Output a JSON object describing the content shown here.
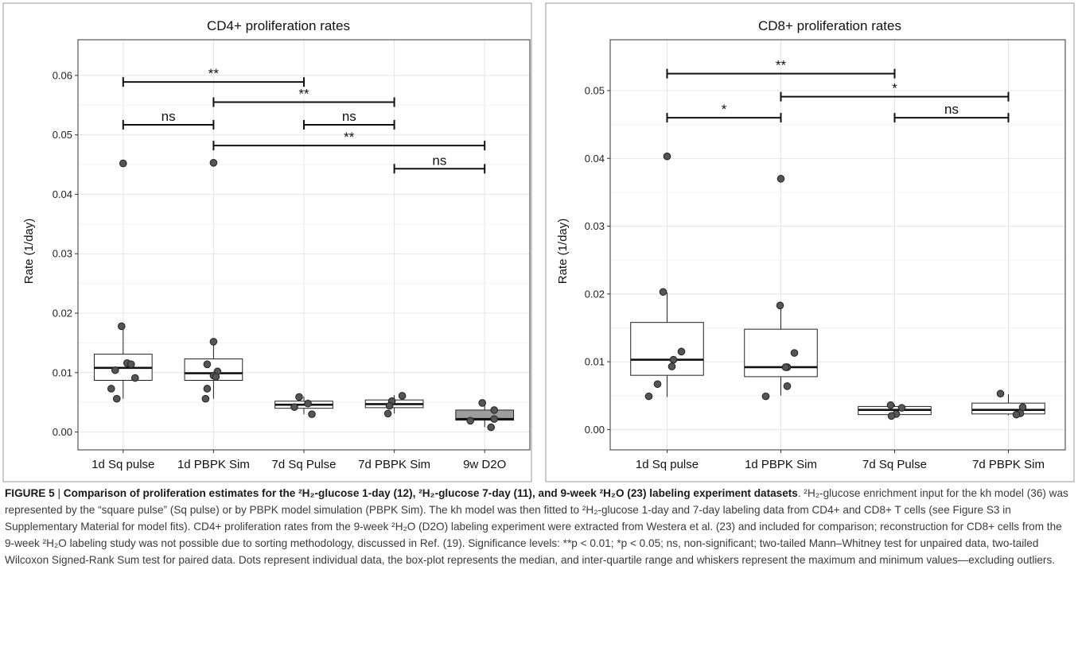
{
  "chart_data": [
    {
      "type": "box",
      "title": "CD4+ proliferation rates",
      "ylabel": "Rate (1/day)",
      "xlabel": "",
      "ylim": [
        -0.003,
        0.066
      ],
      "yticks": [
        0.0,
        0.01,
        0.02,
        0.03,
        0.04,
        0.05,
        0.06
      ],
      "ytick_labels": [
        "0.00",
        "0.01",
        "0.02",
        "0.03",
        "0.04",
        "0.05",
        "0.06"
      ],
      "categories": [
        "1d Sq pulse",
        "1d PBPK Sim",
        "7d Sq Pulse",
        "7d PBPK Sim",
        "9w D2O"
      ],
      "grid": true,
      "boxes": [
        {
          "q1": 0.0087,
          "median": 0.0108,
          "q3": 0.0131,
          "whisker_low": 0.0056,
          "whisker_high": 0.0178,
          "fill": "#ffffff",
          "points": [
            0.0178,
            0.0116,
            0.0114,
            0.0104,
            0.0091,
            0.0073,
            0.0056,
            0.0452
          ]
        },
        {
          "q1": 0.0087,
          "median": 0.0099,
          "q3": 0.0123,
          "whisker_low": 0.0056,
          "whisker_high": 0.0152,
          "fill": "#ffffff",
          "points": [
            0.0152,
            0.0114,
            0.0102,
            0.0095,
            0.0093,
            0.0073,
            0.0056,
            0.0453
          ]
        },
        {
          "q1": 0.004,
          "median": 0.0046,
          "q3": 0.0052,
          "whisker_low": 0.003,
          "whisker_high": 0.006,
          "fill": "#ffffff",
          "points": [
            0.0059,
            0.0048,
            0.0042,
            0.003
          ]
        },
        {
          "q1": 0.0041,
          "median": 0.0047,
          "q3": 0.0054,
          "whisker_low": 0.0031,
          "whisker_high": 0.0062,
          "fill": "#ffffff",
          "points": [
            0.0061,
            0.0052,
            0.0044,
            0.0031
          ]
        },
        {
          "q1": 0.002,
          "median": 0.0022,
          "q3": 0.0037,
          "whisker_low": 0.0008,
          "whisker_high": 0.0049,
          "fill": "#9e9e9e",
          "points": [
            0.0049,
            0.0037,
            0.0022,
            0.0019,
            0.0008
          ]
        }
      ],
      "significance": [
        {
          "from": 0,
          "to": 2,
          "y": 0.0589,
          "label": "**"
        },
        {
          "from": 1,
          "to": 3,
          "y": 0.0555,
          "label": "**"
        },
        {
          "from": 0,
          "to": 1,
          "y": 0.0517,
          "label": "ns"
        },
        {
          "from": 2,
          "to": 3,
          "y": 0.0517,
          "label": "ns"
        },
        {
          "from": 1,
          "to": 4,
          "y": 0.0482,
          "label": "**"
        },
        {
          "from": 3,
          "to": 4,
          "y": 0.0443,
          "label": "ns"
        }
      ]
    },
    {
      "type": "box",
      "title": "CD8+ proliferation rates",
      "ylabel": "Rate (1/day)",
      "xlabel": "",
      "ylim": [
        -0.003,
        0.0575
      ],
      "yticks": [
        0.0,
        0.01,
        0.02,
        0.03,
        0.04,
        0.05
      ],
      "ytick_labels": [
        "0.00",
        "0.01",
        "0.02",
        "0.03",
        "0.04",
        "0.05"
      ],
      "categories": [
        "1d Sq pulse",
        "1d PBPK Sim",
        "7d Sq Pulse",
        "7d PBPK Sim"
      ],
      "grid": true,
      "boxes": [
        {
          "q1": 0.008,
          "median": 0.0103,
          "q3": 0.0158,
          "whisker_low": 0.0048,
          "whisker_high": 0.0202,
          "fill": "#ffffff",
          "points": [
            0.0203,
            0.0115,
            0.0103,
            0.0093,
            0.0067,
            0.0049,
            0.0403
          ]
        },
        {
          "q1": 0.0078,
          "median": 0.0092,
          "q3": 0.0148,
          "whisker_low": 0.005,
          "whisker_high": 0.0183,
          "fill": "#ffffff",
          "points": [
            0.0183,
            0.0113,
            0.0092,
            0.0092,
            0.0064,
            0.0049,
            0.037
          ]
        },
        {
          "q1": 0.0022,
          "median": 0.0029,
          "q3": 0.0034,
          "whisker_low": 0.0019,
          "whisker_high": 0.0037,
          "fill": "#ffffff",
          "points": [
            0.0036,
            0.0032,
            0.0023,
            0.002
          ]
        },
        {
          "q1": 0.0023,
          "median": 0.0029,
          "q3": 0.0039,
          "whisker_low": 0.0021,
          "whisker_high": 0.0052,
          "fill": "#ffffff",
          "points": [
            0.0053,
            0.0033,
            0.0024,
            0.0022
          ]
        }
      ],
      "significance": [
        {
          "from": 0,
          "to": 2,
          "y": 0.0525,
          "label": "**"
        },
        {
          "from": 1,
          "to": 3,
          "y": 0.0491,
          "label": "*"
        },
        {
          "from": 0,
          "to": 1,
          "y": 0.046,
          "label": "*"
        },
        {
          "from": 2,
          "to": 3,
          "y": 0.046,
          "label": "ns"
        }
      ]
    }
  ],
  "caption": {
    "label": "FIGURE 5",
    "separator": " | ",
    "title": "Comparison of proliferation estimates for the ²H₂-glucose 1-day (12), ²H₂-glucose 7-day (11), and 9-week ²H₂O (23) labeling experiment datasets",
    "body": ". ²H₂-glucose enrichment input for the kh model (36) was represented by the “square pulse” (Sq pulse) or by PBPK model simulation (PBPK Sim). The kh model was then fitted to ²H₂-glucose 1-day and 7-day labeling data from CD4+ and CD8+ T cells (see Figure S3 in Supplementary Material for model fits). CD4+ proliferation rates from the 9-week ²H₂O (D2O) labeling experiment were extracted from Westera et al. (23) and included for comparison; reconstruction for CD8+ cells from the 9-week ²H₂O labeling study was not possible due to sorting methodology, discussed in Ref. (19). Significance levels: **p < 0.01; *p < 0.05; ns, non-significant; two-tailed Mann–Whitney test for unpaired data, two-tailed Wilcoxon Signed-Rank Sum test for paired data. Dots represent individual data, the box-plot represents the median, and inter-quartile range and whiskers represent the maximum and minimum values—excluding outliers."
  },
  "colors": {
    "point_fill": "#555555",
    "point_stroke": "#222222",
    "box_stroke": "#222222",
    "grid": "#e4e4e4"
  }
}
